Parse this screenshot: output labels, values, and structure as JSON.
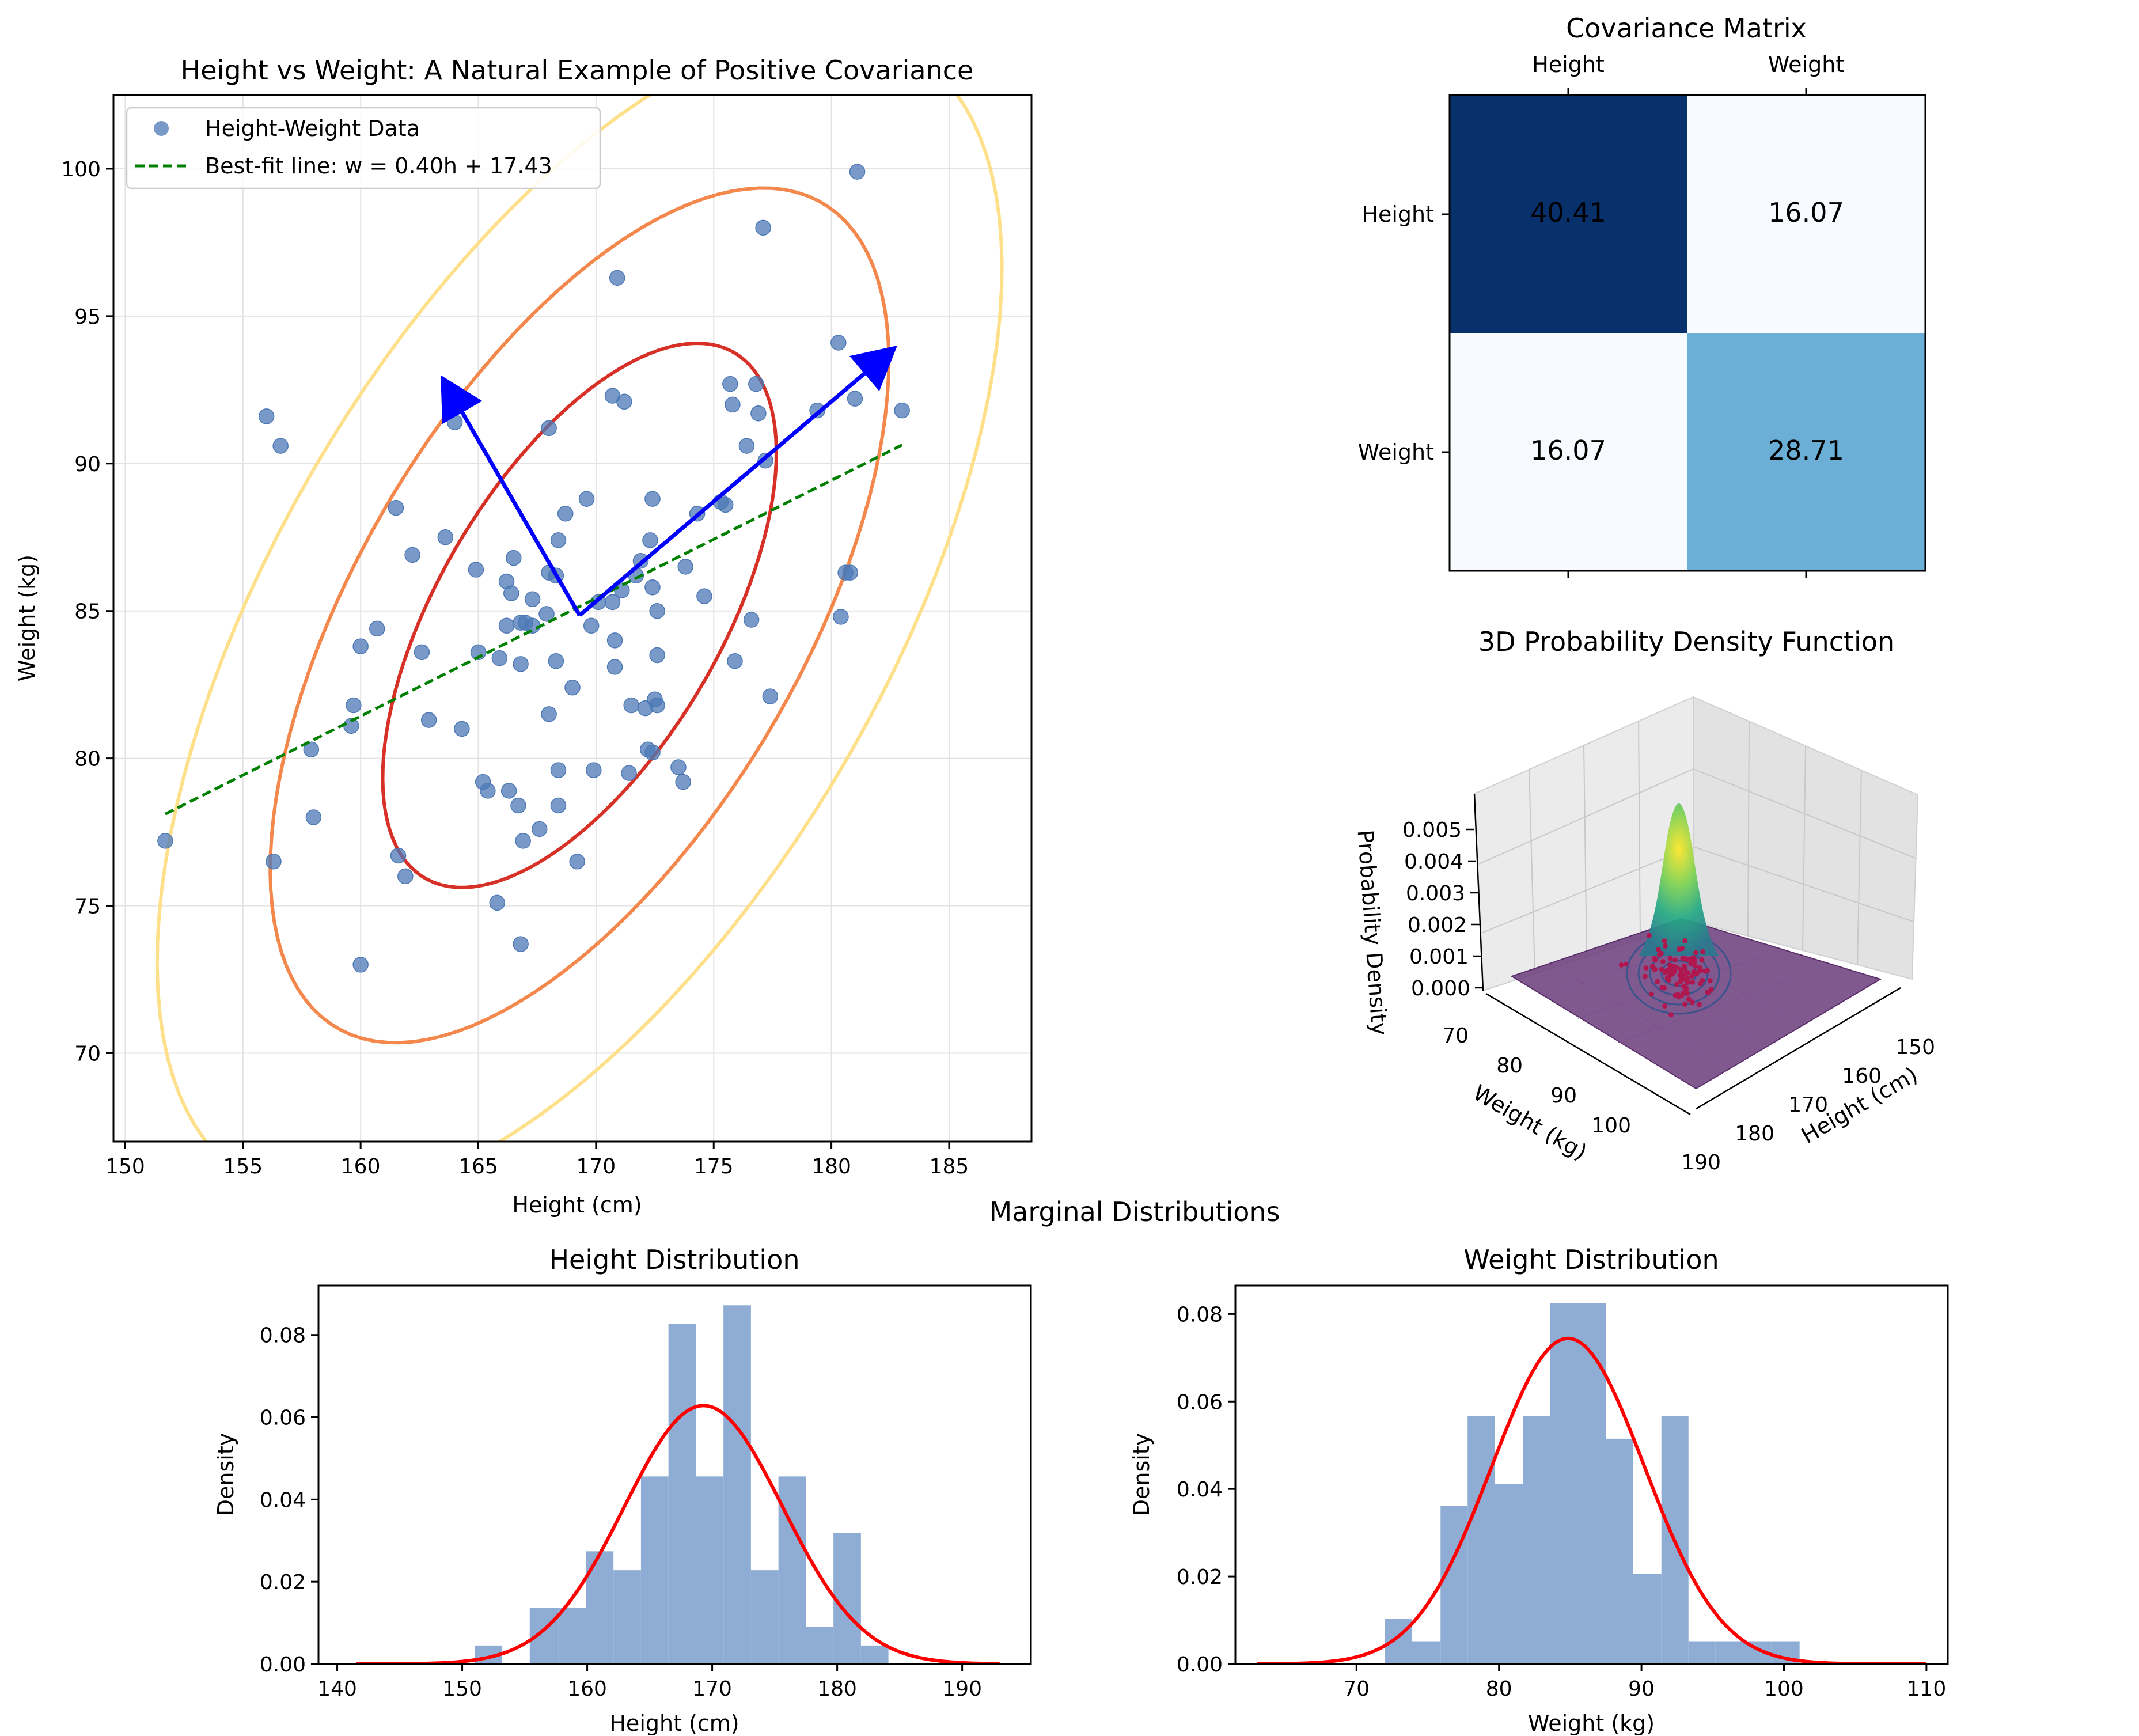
{
  "figure": {
    "suptitle_marginals": "Marginal Distributions"
  },
  "colors": {
    "scatter": "#4c78b5",
    "fit_line": "#008000",
    "eigen_arrow": "#0000ff",
    "ellipse_1sd": "#d73027",
    "ellipse_2sd": "#f4874b",
    "ellipse_3sd": "#fee08b",
    "hist": "#8fadd4",
    "pdf_curve": "#ff0000",
    "cov_dark": "#08306b",
    "cov_mid": "#6baed6",
    "cov_light": "#f7fbff"
  },
  "chart_data": [
    {
      "id": "scatter",
      "type": "scatter",
      "title": "Height vs Weight: A Natural Example of Positive Covariance",
      "xlabel": "Height (cm)",
      "ylabel": "Weight (kg)",
      "xlim": [
        149.5,
        188.5
      ],
      "ylim": [
        67,
        102.5
      ],
      "xticks": [
        150,
        155,
        160,
        165,
        170,
        175,
        180,
        185
      ],
      "yticks": [
        70,
        75,
        80,
        85,
        90,
        95,
        100
      ],
      "grid": true,
      "legend": {
        "position": "top-left",
        "entries": [
          "Height-Weight Data",
          "Best-fit line: w = 0.40h + 17.43"
        ]
      },
      "points": [
        [
          151.7,
          77.2
        ],
        [
          156.0,
          91.6
        ],
        [
          156.3,
          76.5
        ],
        [
          156.6,
          90.6
        ],
        [
          157.9,
          80.3
        ],
        [
          158.0,
          78.0
        ],
        [
          159.6,
          81.1
        ],
        [
          159.7,
          81.8
        ],
        [
          160.0,
          83.8
        ],
        [
          160.0,
          73.0
        ],
        [
          160.7,
          84.4
        ],
        [
          161.5,
          88.5
        ],
        [
          161.6,
          76.7
        ],
        [
          161.9,
          76.0
        ],
        [
          162.2,
          86.9
        ],
        [
          162.6,
          83.6
        ],
        [
          162.9,
          81.3
        ],
        [
          163.6,
          87.5
        ],
        [
          164.0,
          91.4
        ],
        [
          164.3,
          81.0
        ],
        [
          164.9,
          86.4
        ],
        [
          165.0,
          83.6
        ],
        [
          165.2,
          79.2
        ],
        [
          165.4,
          78.9
        ],
        [
          165.8,
          75.1
        ],
        [
          165.9,
          83.4
        ],
        [
          166.2,
          84.5
        ],
        [
          166.2,
          86.0
        ],
        [
          166.3,
          78.9
        ],
        [
          166.4,
          85.6
        ],
        [
          166.5,
          86.8
        ],
        [
          166.7,
          78.4
        ],
        [
          166.8,
          84.6
        ],
        [
          166.8,
          83.2
        ],
        [
          166.9,
          77.2
        ],
        [
          166.8,
          73.7
        ],
        [
          167.0,
          84.6
        ],
        [
          167.3,
          84.5
        ],
        [
          167.3,
          85.4
        ],
        [
          167.6,
          77.6
        ],
        [
          167.9,
          84.9
        ],
        [
          168.0,
          81.5
        ],
        [
          168.0,
          91.2
        ],
        [
          168.0,
          86.3
        ],
        [
          168.3,
          86.2
        ],
        [
          168.3,
          83.3
        ],
        [
          168.4,
          79.6
        ],
        [
          168.4,
          78.4
        ],
        [
          168.4,
          87.4
        ],
        [
          168.7,
          88.3
        ],
        [
          169.0,
          82.4
        ],
        [
          169.2,
          76.5
        ],
        [
          169.6,
          88.8
        ],
        [
          169.8,
          84.5
        ],
        [
          169.9,
          79.6
        ],
        [
          170.1,
          85.3
        ],
        [
          170.7,
          92.3
        ],
        [
          170.7,
          85.3
        ],
        [
          170.8,
          84.0
        ],
        [
          170.8,
          83.1
        ],
        [
          170.9,
          96.3
        ],
        [
          171.1,
          85.7
        ],
        [
          171.2,
          92.1
        ],
        [
          171.4,
          79.5
        ],
        [
          171.5,
          81.8
        ],
        [
          171.7,
          86.2
        ],
        [
          171.9,
          86.7
        ],
        [
          172.1,
          81.7
        ],
        [
          172.2,
          80.3
        ],
        [
          172.3,
          87.4
        ],
        [
          172.4,
          85.8
        ],
        [
          172.4,
          80.2
        ],
        [
          172.4,
          88.8
        ],
        [
          172.5,
          82.0
        ],
        [
          172.6,
          81.8
        ],
        [
          172.6,
          85.0
        ],
        [
          172.6,
          83.5
        ],
        [
          173.5,
          79.7
        ],
        [
          173.7,
          79.2
        ],
        [
          173.8,
          86.5
        ],
        [
          174.3,
          88.3
        ],
        [
          174.6,
          85.5
        ],
        [
          175.3,
          88.7
        ],
        [
          175.5,
          88.6
        ],
        [
          175.7,
          92.7
        ],
        [
          175.8,
          92.0
        ],
        [
          175.9,
          83.3
        ],
        [
          176.4,
          90.6
        ],
        [
          176.6,
          84.7
        ],
        [
          176.8,
          92.7
        ],
        [
          176.9,
          91.7
        ],
        [
          177.1,
          98.0
        ],
        [
          177.2,
          90.1
        ],
        [
          177.4,
          82.1
        ],
        [
          179.4,
          91.8
        ],
        [
          180.3,
          94.1
        ],
        [
          180.4,
          84.8
        ],
        [
          180.6,
          86.3
        ],
        [
          180.8,
          86.3
        ],
        [
          181.0,
          92.2
        ],
        [
          181.1,
          99.9
        ],
        [
          183.0,
          91.8
        ]
      ],
      "fit_line": {
        "slope": 0.4,
        "intercept": 17.43,
        "x_range": [
          151.7,
          183.0
        ]
      },
      "mean": [
        169.3,
        84.85
      ],
      "eigen_arrow_tips": [
        [
          182.8,
          94.0
        ],
        [
          163.4,
          93.0
        ]
      ],
      "ellipses": [
        {
          "width": 22.3,
          "height": 11.1,
          "angle_deg": 49.7
        },
        {
          "width": 35.0,
          "height": 17.5,
          "angle_deg": 49.7
        },
        {
          "width": 47.8,
          "height": 23.9,
          "angle_deg": 49.7
        }
      ]
    },
    {
      "id": "covariance",
      "type": "heatmap",
      "title": "Covariance Matrix",
      "labels": [
        "Height",
        "Weight"
      ],
      "values": [
        [
          40.41,
          16.07
        ],
        [
          16.07,
          28.71
        ]
      ]
    },
    {
      "id": "pdf3d",
      "type": "surface",
      "title": "3D Probability Density Function",
      "xlabel": "Height (cm)",
      "ylabel": "Weight (kg)",
      "zlabel": "Probability Density",
      "xticks": [
        "150",
        "160",
        "170",
        "180",
        "190"
      ],
      "yticks": [
        "70",
        "80",
        "90",
        "100"
      ],
      "zticks": [
        "0.000",
        "0.001",
        "0.002",
        "0.003",
        "0.004",
        "0.005"
      ]
    },
    {
      "id": "hist_height",
      "type": "bar",
      "title": "Height Distribution",
      "xlabel": "Height (cm)",
      "ylabel": "Density",
      "xlim": [
        138.5,
        195.5
      ],
      "ylim": [
        0,
        0.092
      ],
      "xticks": [
        140,
        150,
        160,
        170,
        180,
        190
      ],
      "yticks": [
        0.0,
        0.02,
        0.04,
        0.06,
        0.08
      ],
      "bin_edges": [
        151.0,
        153.2,
        155.4,
        157.7,
        159.9,
        162.1,
        164.3,
        166.5,
        168.7,
        170.9,
        173.1,
        175.3,
        177.5,
        179.7,
        181.9,
        184.1
      ],
      "values": [
        0.0045,
        0.0,
        0.0137,
        0.0137,
        0.0274,
        0.0228,
        0.0456,
        0.0827,
        0.0456,
        0.0872,
        0.0228,
        0.0456,
        0.0091,
        0.0319,
        0.0045
      ],
      "pdf": {
        "mean": 169.3,
        "std": 6.35,
        "x_range": [
          141.5,
          193.0
        ]
      }
    },
    {
      "id": "hist_weight",
      "type": "bar",
      "title": "Weight Distribution",
      "xlabel": "Weight (kg)",
      "ylabel": "Density",
      "xlim": [
        61.5,
        111.5
      ],
      "ylim": [
        0,
        0.0865
      ],
      "xticks": [
        70,
        80,
        90,
        100,
        110
      ],
      "yticks": [
        0.0,
        0.02,
        0.04,
        0.06,
        0.08
      ],
      "bin_edges": [
        72.0,
        73.9,
        75.9,
        77.8,
        79.7,
        81.7,
        83.6,
        85.6,
        87.5,
        89.4,
        91.4,
        93.3,
        95.2,
        97.2,
        99.1,
        101.1
      ],
      "values": [
        0.0103,
        0.0052,
        0.0361,
        0.0567,
        0.0412,
        0.0567,
        0.0825,
        0.0825,
        0.0515,
        0.0206,
        0.0567,
        0.0052,
        0.0052,
        0.0052,
        0.0052
      ],
      "pdf": {
        "mean": 84.85,
        "std": 5.36,
        "x_range": [
          63.0,
          110.0
        ]
      }
    }
  ]
}
